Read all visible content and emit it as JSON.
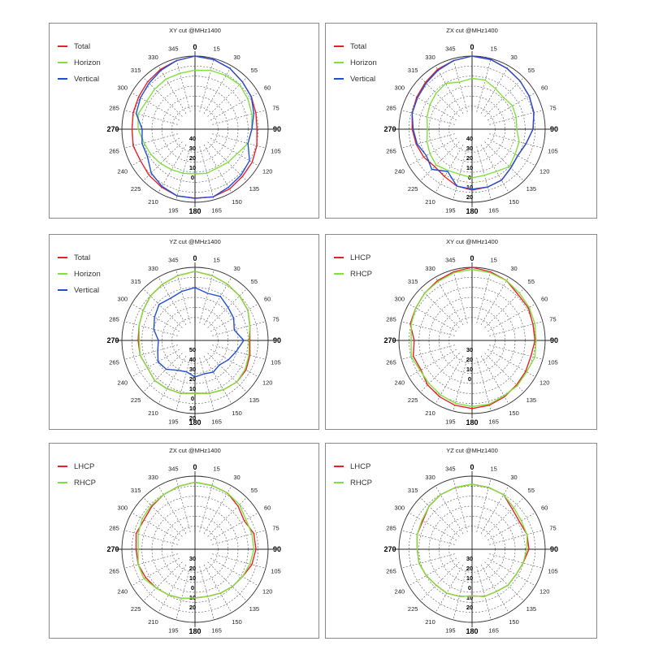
{
  "chart_data": [
    {
      "type": "polar-line",
      "title": "XY cut @MHz1400",
      "angle_labels": [
        "0",
        "15",
        "30",
        "55",
        "60",
        "75",
        "90",
        "105",
        "120",
        "135",
        "150",
        "165",
        "180",
        "195",
        "210",
        "225",
        "240",
        "265",
        "270",
        "285",
        "300",
        "315",
        "330",
        "345"
      ],
      "radial_labels": [
        "40",
        "30",
        "20",
        "10",
        "0"
      ],
      "series": [
        {
          "name": "Total",
          "color": "#e8202a",
          "values": [
            0,
            -1,
            -3,
            -6,
            -8,
            -10,
            -11,
            -9,
            -7,
            -6,
            -4,
            -3,
            -4,
            -4,
            -6,
            -8,
            -10,
            -9,
            -10,
            -9,
            -8,
            -6,
            -4,
            -2
          ]
        },
        {
          "name": "Horizon",
          "color": "#7ee13c",
          "values": [
            -14,
            -12,
            -11,
            -10,
            -12,
            -14,
            -16,
            -18,
            -24,
            -26,
            -28,
            -27,
            -28,
            -27,
            -26,
            -24,
            -22,
            -20,
            -16,
            -14,
            -17,
            -16,
            -15,
            -15
          ]
        },
        {
          "name": "Vertical",
          "color": "#1f4fd6",
          "values": [
            0,
            -1,
            -3,
            -6,
            -8,
            -12,
            -16,
            -18,
            -10,
            -8,
            -6,
            -3,
            -4,
            -4,
            -7,
            -11,
            -18,
            -18,
            -20,
            -12,
            -10,
            -8,
            -5,
            -2
          ]
        }
      ]
    },
    {
      "type": "polar-line",
      "title": "ZX cut @MHz1400",
      "angle_labels": [
        "0",
        "15",
        "30",
        "55",
        "60",
        "75",
        "90",
        "105",
        "120",
        "135",
        "150",
        "165",
        "180",
        "195",
        "210",
        "225",
        "240",
        "265",
        "270",
        "285",
        "300",
        "315",
        "330",
        "345"
      ],
      "radial_labels": [
        "40",
        "30",
        "20",
        "10",
        "0",
        "10",
        "20"
      ],
      "series": [
        {
          "name": "Total",
          "color": "#e8202a",
          "values": [
            0,
            -1,
            -3,
            -5,
            -7,
            -9,
            -12,
            -17,
            -20,
            -18,
            -14,
            -13,
            -12,
            -14,
            -18,
            -20,
            -17,
            -15,
            -13,
            -11,
            -9,
            -7,
            -4,
            -2
          ]
        },
        {
          "name": "Horizon",
          "color": "#7ee13c",
          "values": [
            -22,
            -22,
            -26,
            -28,
            -26,
            -27,
            -28,
            -24,
            -23,
            -20,
            -24,
            -25,
            -24,
            -26,
            -25,
            -22,
            -24,
            -26,
            -28,
            -26,
            -24,
            -22,
            -20,
            -24
          ]
        },
        {
          "name": "Vertical",
          "color": "#1f4fd6",
          "values": [
            0,
            -1,
            -3,
            -5,
            -7,
            -9,
            -12,
            -17,
            -20,
            -18,
            -14,
            -13,
            -13,
            -14,
            -24,
            -16,
            -20,
            -16,
            -14,
            -11,
            -10,
            -8,
            -5,
            -2
          ]
        }
      ]
    },
    {
      "type": "polar-line",
      "title": "YZ cut @MHz1400",
      "angle_labels": [
        "0",
        "15",
        "30",
        "55",
        "60",
        "75",
        "90",
        "105",
        "120",
        "135",
        "150",
        "165",
        "180",
        "195",
        "210",
        "225",
        "240",
        "265",
        "270",
        "285",
        "300",
        "315",
        "330",
        "345"
      ],
      "radial_labels": [
        "50",
        "40",
        "30",
        "20",
        "10",
        "0",
        "10",
        "20"
      ],
      "series": [
        {
          "name": "Total",
          "color": "#e8202a",
          "values": [
            -4,
            -6,
            -8,
            -10,
            -12,
            -16,
            -18,
            -16,
            -14,
            -14,
            -16,
            -18,
            -20,
            -18,
            -17,
            -16,
            -18,
            -16,
            -16,
            -15,
            -13,
            -10,
            -8,
            -6
          ]
        },
        {
          "name": "Horizon",
          "color": "#7ee13c",
          "values": [
            -4,
            -6,
            -8,
            -10,
            -12,
            -16,
            -19,
            -17,
            -15,
            -14,
            -16,
            -18,
            -20,
            -18,
            -17,
            -16,
            -18,
            -16,
            -17,
            -15,
            -13,
            -10,
            -8,
            -6
          ]
        },
        {
          "name": "Vertical",
          "color": "#1f4fd6",
          "values": [
            -20,
            -24,
            -22,
            -26,
            -28,
            -32,
            -24,
            -30,
            -34,
            -38,
            -36,
            -38,
            -36,
            -40,
            -38,
            -32,
            -30,
            -34,
            -36,
            -30,
            -26,
            -22,
            -24,
            -22
          ]
        }
      ]
    },
    {
      "type": "polar-line",
      "title": "XY cut @MHz1400",
      "angle_labels": [
        "0",
        "15",
        "30",
        "55",
        "60",
        "75",
        "90",
        "105",
        "120",
        "135",
        "150",
        "165",
        "180",
        "195",
        "210",
        "225",
        "240",
        "265",
        "270",
        "285",
        "300",
        "315",
        "330",
        "345"
      ],
      "radial_labels": [
        "30",
        "20",
        "10",
        "0"
      ],
      "series": [
        {
          "name": "LHCP",
          "color": "#e8202a",
          "values": [
            0,
            -2,
            -4,
            -8,
            -8,
            -10,
            -10,
            -12,
            -11,
            -10,
            -8,
            -6,
            -5,
            -6,
            -8,
            -10,
            -14,
            -12,
            -15,
            -9,
            -8,
            -6,
            -4,
            -2
          ]
        },
        {
          "name": "RHCP",
          "color": "#7ee13c",
          "values": [
            -2,
            -3,
            -4,
            -6,
            -7,
            -8,
            -9,
            -8,
            -10,
            -9,
            -9,
            -7,
            -7,
            -8,
            -10,
            -12,
            -13,
            -10,
            -12,
            -10,
            -8,
            -6,
            -5,
            -3
          ]
        }
      ]
    },
    {
      "type": "polar-line",
      "title": "ZX cut @MHz1400",
      "angle_labels": [
        "0",
        "15",
        "30",
        "55",
        "60",
        "75",
        "90",
        "105",
        "120",
        "135",
        "150",
        "165",
        "180",
        "195",
        "210",
        "225",
        "240",
        "265",
        "270",
        "285",
        "300",
        "315",
        "330",
        "345"
      ],
      "radial_labels": [
        "30",
        "20",
        "10",
        "0",
        "10",
        "20"
      ],
      "series": [
        {
          "name": "LHCP",
          "color": "#e8202a",
          "values": [
            -6,
            -7,
            -8,
            -12,
            -16,
            -12,
            -12,
            -14,
            -18,
            -20,
            -22,
            -24,
            -24,
            -22,
            -20,
            -18,
            -16,
            -14,
            -14,
            -12,
            -14,
            -12,
            -10,
            -8
          ]
        },
        {
          "name": "RHCP",
          "color": "#7ee13c",
          "values": [
            -6,
            -7,
            -8,
            -10,
            -14,
            -14,
            -14,
            -16,
            -18,
            -20,
            -22,
            -24,
            -24,
            -22,
            -20,
            -18,
            -14,
            -14,
            -16,
            -14,
            -12,
            -11,
            -10,
            -8
          ]
        }
      ]
    },
    {
      "type": "polar-line",
      "title": "YZ cut @MHz1400",
      "angle_labels": [
        "0",
        "15",
        "30",
        "55",
        "60",
        "75",
        "90",
        "105",
        "120",
        "135",
        "150",
        "165",
        "180",
        "195",
        "210",
        "225",
        "240",
        "265",
        "270",
        "285",
        "300",
        "315",
        "330",
        "345"
      ],
      "radial_labels": [
        "30",
        "20",
        "10",
        "0",
        "10",
        "20"
      ],
      "series": [
        {
          "name": "LHCP",
          "color": "#e8202a",
          "values": [
            -8,
            -9,
            -10,
            -16,
            -18,
            -16,
            -16,
            -20,
            -22,
            -22,
            -24,
            -24,
            -26,
            -24,
            -22,
            -22,
            -20,
            -18,
            -18,
            -16,
            -16,
            -12,
            -10,
            -9
          ]
        },
        {
          "name": "RHCP",
          "color": "#7ee13c",
          "values": [
            -8,
            -9,
            -10,
            -14,
            -16,
            -16,
            -18,
            -20,
            -22,
            -22,
            -24,
            -24,
            -26,
            -24,
            -22,
            -22,
            -20,
            -18,
            -18,
            -16,
            -15,
            -12,
            -10,
            -9
          ]
        }
      ]
    }
  ]
}
